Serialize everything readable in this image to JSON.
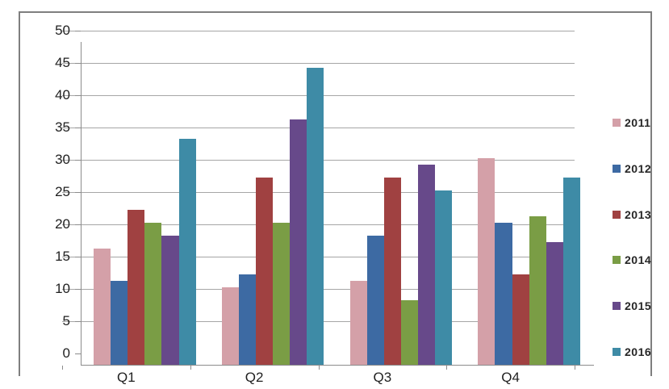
{
  "chart_data": {
    "type": "bar",
    "title": "",
    "xlabel": "",
    "ylabel": "",
    "categories": [
      "Q1",
      "Q2",
      "Q3",
      "Q4"
    ],
    "series": [
      {
        "name": "2011",
        "color": "#d4a0a8",
        "values": [
          18,
          12,
          13,
          32
        ]
      },
      {
        "name": "2012",
        "color": "#3d6aa3",
        "values": [
          13,
          14,
          20,
          22
        ]
      },
      {
        "name": "2013",
        "color": "#a04141",
        "values": [
          24,
          29,
          29,
          14
        ]
      },
      {
        "name": "2014",
        "color": "#7a9d45",
        "values": [
          22,
          22,
          10,
          23
        ]
      },
      {
        "name": "2015",
        "color": "#67498a",
        "values": [
          20,
          38,
          31,
          19
        ]
      },
      {
        "name": "2016",
        "color": "#3e8ba6",
        "values": [
          35,
          46,
          27,
          29
        ]
      }
    ],
    "ylim": [
      0,
      50
    ],
    "yticks": [
      0,
      5,
      10,
      15,
      20,
      25,
      30,
      35,
      40,
      45,
      50
    ],
    "grid": true,
    "legend_position": "right",
    "colors": {
      "frame_border": "#7f7f7f",
      "gridline": "#a6a6a6",
      "axis_line": "#8c8c8c",
      "tick_text": "#1f1f1f",
      "legend_text": "#262626",
      "background": "#ffffff"
    }
  }
}
